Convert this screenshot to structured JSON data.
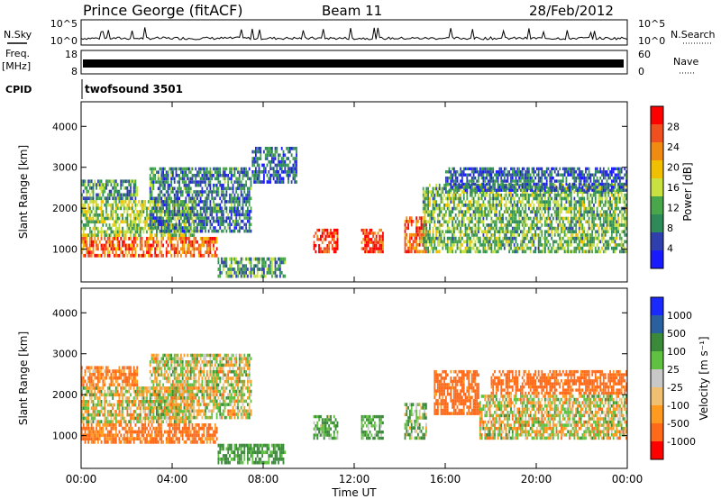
{
  "header": {
    "station": "Prince George (fitACF)",
    "beam": "Beam 11",
    "date": "28/Feb/2012"
  },
  "strip_labels": {
    "nsky": "N.Sky",
    "freq_top": "Freq.",
    "freq_unit": "[MHz]",
    "cpid": "CPID",
    "nsearch": "N.Search",
    "nave": "Nave",
    "nsky_ticks": [
      "10^5",
      "10^0"
    ],
    "nsearch_ticks": [
      "10^5",
      "10^0"
    ],
    "freq_ticks": [
      "18",
      "8"
    ],
    "nave_ticks": [
      "60",
      "0"
    ],
    "cpid_text": "twofsound 3501"
  },
  "colors": {
    "power_scale": [
      "#1a1aff",
      "#2f3fae",
      "#2f8a5a",
      "#4aa64a",
      "#c8e040",
      "#f0c000",
      "#f08a10",
      "#f05020",
      "#ff0000"
    ],
    "velocity_scale": [
      "#ff0000",
      "#ff6a1a",
      "#ff9a20",
      "#f0c070",
      "#c8c8c8",
      "#60c040",
      "#3a8a3a",
      "#2a60a0",
      "#1a2aff"
    ]
  },
  "chart_data": [
    {
      "type": "heatmap",
      "title": "",
      "xlabel": "Time UT",
      "ylabel": "Slant Range [km]",
      "x_ticks": [
        "00:00",
        "04:00",
        "08:00",
        "12:00",
        "16:00",
        "20:00",
        "00:00"
      ],
      "y_ticks": [
        "1000",
        "2000",
        "3000",
        "4000"
      ],
      "ylim": [
        200,
        4600
      ],
      "xlim_hours": [
        0,
        24
      ],
      "colorbar": {
        "label": "Power [dB]",
        "ticks": [
          "4",
          "8",
          "12",
          "16",
          "20",
          "24",
          "28"
        ],
        "range": [
          0,
          30
        ]
      },
      "features": [
        {
          "t0": 0.0,
          "t1": 6.0,
          "r0": 800,
          "r1": 1300,
          "level": 24
        },
        {
          "t0": 0.0,
          "t1": 5.0,
          "r0": 1300,
          "r1": 2200,
          "level": 14
        },
        {
          "t0": 0.0,
          "t1": 2.5,
          "r0": 2200,
          "r1": 2700,
          "level": 10
        },
        {
          "t0": 3.0,
          "t1": 7.5,
          "r0": 1400,
          "r1": 3000,
          "level": 8
        },
        {
          "t0": 6.0,
          "t1": 9.0,
          "r0": 300,
          "r1": 800,
          "level": 10
        },
        {
          "t0": 7.5,
          "t1": 9.5,
          "r0": 2600,
          "r1": 3500,
          "level": 6
        },
        {
          "t0": 10.2,
          "t1": 11.3,
          "r0": 900,
          "r1": 1500,
          "level": 26
        },
        {
          "t0": 12.3,
          "t1": 13.3,
          "r0": 900,
          "r1": 1500,
          "level": 26
        },
        {
          "t0": 14.2,
          "t1": 15.2,
          "r0": 900,
          "r1": 1800,
          "level": 24
        },
        {
          "t0": 15.0,
          "t1": 24.0,
          "r0": 900,
          "r1": 2600,
          "level": 12
        },
        {
          "t0": 16.0,
          "t1": 24.0,
          "r0": 2400,
          "r1": 3000,
          "level": 6
        }
      ]
    },
    {
      "type": "heatmap",
      "title": "",
      "xlabel": "Time UT",
      "ylabel": "Slant Range [km]",
      "x_ticks": [
        "00:00",
        "04:00",
        "08:00",
        "12:00",
        "16:00",
        "20:00",
        "00:00"
      ],
      "y_ticks": [
        "1000",
        "2000",
        "3000",
        "4000"
      ],
      "ylim": [
        200,
        4600
      ],
      "xlim_hours": [
        0,
        24
      ],
      "colorbar": {
        "label": "Velocity [m s⁻¹]",
        "ticks": [
          "1000",
          "500",
          "100",
          "25",
          "-25",
          "-100",
          "-500",
          "-1000"
        ],
        "range": [
          -1000,
          1000
        ]
      },
      "features": [
        {
          "t0": 0.0,
          "t1": 6.0,
          "r0": 800,
          "r1": 1300,
          "level": -150
        },
        {
          "t0": 0.0,
          "t1": 5.0,
          "r0": 1300,
          "r1": 2200,
          "level": 0
        },
        {
          "t0": 0.0,
          "t1": 2.5,
          "r0": 2200,
          "r1": 2700,
          "level": -120
        },
        {
          "t0": 3.0,
          "t1": 7.5,
          "r0": 1400,
          "r1": 3000,
          "level": 0
        },
        {
          "t0": 6.0,
          "t1": 9.0,
          "r0": 300,
          "r1": 800,
          "level": 150
        },
        {
          "t0": 10.2,
          "t1": 11.3,
          "r0": 900,
          "r1": 1500,
          "level": 120
        },
        {
          "t0": 12.3,
          "t1": 13.3,
          "r0": 900,
          "r1": 1500,
          "level": 120
        },
        {
          "t0": 14.2,
          "t1": 15.2,
          "r0": 900,
          "r1": 1800,
          "level": 80
        },
        {
          "t0": 15.5,
          "t1": 17.5,
          "r0": 1500,
          "r1": 2600,
          "level": -200
        },
        {
          "t0": 17.5,
          "t1": 24.0,
          "r0": 900,
          "r1": 2000,
          "level": 0
        },
        {
          "t0": 18.0,
          "t1": 24.0,
          "r0": 2000,
          "r1": 2600,
          "level": -200
        }
      ]
    }
  ]
}
